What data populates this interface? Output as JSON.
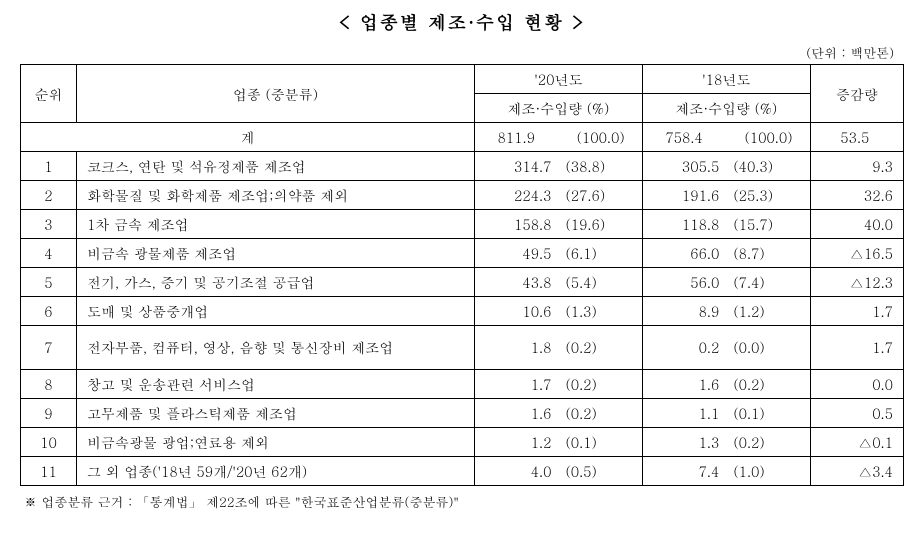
{
  "title": "< 업종별 제조·수입 현황 >",
  "unit": "(단위 : 백만톤)",
  "headers": {
    "rank": "순위",
    "category": "업종 (중분류)",
    "year20": "'20년도",
    "year18": "'18년도",
    "amount_label": "제조·수입량 (%)",
    "delta": "증감량"
  },
  "total": {
    "label": "계",
    "v20": "811.9",
    "p20": "(100.0)",
    "v18": "758.4",
    "p18": "(100.0)",
    "delta": "53.5"
  },
  "rows": [
    {
      "rank": "1",
      "cat": "코크스, 연탄 및 석유정제품 제조업",
      "v20": "314.7",
      "p20": "(38.8)",
      "v18": "305.5",
      "p18": "(40.3)",
      "delta": "9.3"
    },
    {
      "rank": "2",
      "cat": "화학물질 및 화학제품 제조업;의약품 제외",
      "v20": "224.3",
      "p20": "(27.6)",
      "v18": "191.6",
      "p18": "(25.3)",
      "delta": "32.6"
    },
    {
      "rank": "3",
      "cat": "1차 금속 제조업",
      "v20": "158.8",
      "p20": "(19.6)",
      "v18": "118.8",
      "p18": "(15.7)",
      "delta": "40.0"
    },
    {
      "rank": "4",
      "cat": "비금속 광물제품 제조업",
      "v20": "49.5",
      "p20": "(6.1)",
      "v18": "66.0",
      "p18": "(8.7)",
      "delta": "△16.5"
    },
    {
      "rank": "5",
      "cat": "전기, 가스, 증기 및 공기조절 공급업",
      "v20": "43.8",
      "p20": "(5.4)",
      "v18": "56.0",
      "p18": "(7.4)",
      "delta": "△12.3"
    },
    {
      "rank": "6",
      "cat": "도매 및 상품중개업",
      "v20": "10.6",
      "p20": "(1.3)",
      "v18": "8.9",
      "p18": "(1.2)",
      "delta": "1.7"
    },
    {
      "rank": "7",
      "cat": "전자부품, 컴퓨터, 영상, 음향 및 통신장비 제조업",
      "v20": "1.8",
      "p20": "(0.2)",
      "v18": "0.2",
      "p18": "(0.0)",
      "delta": "1.7",
      "multiline": true
    },
    {
      "rank": "8",
      "cat": "창고 및 운송관련 서비스업",
      "v20": "1.7",
      "p20": "(0.2)",
      "v18": "1.6",
      "p18": "(0.2)",
      "delta": "0.0"
    },
    {
      "rank": "9",
      "cat": "고무제품 및 플라스틱제품 제조업",
      "v20": "1.6",
      "p20": "(0.2)",
      "v18": "1.1",
      "p18": "(0.1)",
      "delta": "0.5"
    },
    {
      "rank": "10",
      "cat": "비금속광물 광업;연료용 제외",
      "v20": "1.2",
      "p20": "(0.1)",
      "v18": "1.3",
      "p18": "(0.2)",
      "delta": "△0.1"
    },
    {
      "rank": "11",
      "cat": "그 외 업종('18년 59개/'20년 62개)",
      "v20": "4.0",
      "p20": "(0.5)",
      "v18": "7.4",
      "p18": "(1.0)",
      "delta": "△3.4"
    }
  ],
  "footnote": "※ 업종분류 근거 : 「통계법」 제22조에 따른 \"한국표준산업분류(중분류)\""
}
